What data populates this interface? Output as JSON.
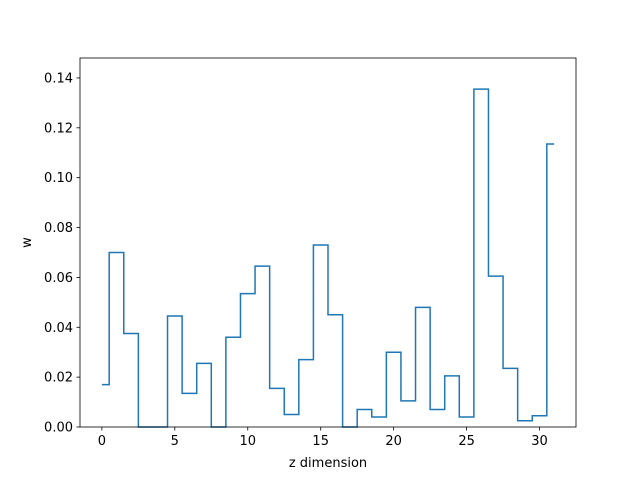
{
  "chart_data": {
    "type": "line",
    "drawstyle": "steps-mid",
    "title": "",
    "xlabel": "z dimension",
    "ylabel": "w",
    "xlim": [
      -1.5,
      32.5
    ],
    "ylim": [
      0.0,
      0.148
    ],
    "xticks": [
      0,
      5,
      10,
      15,
      20,
      25,
      30
    ],
    "yticks": [
      0.0,
      0.02,
      0.04,
      0.06,
      0.08,
      0.1,
      0.12,
      0.14
    ],
    "xtick_labels": [
      "0",
      "5",
      "10",
      "15",
      "20",
      "25",
      "30"
    ],
    "ytick_labels": [
      "0.00",
      "0.02",
      "0.04",
      "0.06",
      "0.08",
      "0.10",
      "0.12",
      "0.14"
    ],
    "grid": false,
    "legend": false,
    "series": [
      {
        "color": "#1f77b4",
        "x": [
          0,
          1,
          2,
          3,
          4,
          5,
          6,
          7,
          8,
          9,
          10,
          11,
          12,
          13,
          14,
          15,
          16,
          17,
          18,
          19,
          20,
          21,
          22,
          23,
          24,
          25,
          26,
          27,
          28,
          29,
          30,
          31
        ],
        "y": [
          0.017,
          0.07,
          0.0375,
          0.0,
          0.0,
          0.0445,
          0.0135,
          0.0255,
          0.0,
          0.036,
          0.0535,
          0.0645,
          0.0155,
          0.005,
          0.027,
          0.073,
          0.045,
          0.0,
          0.007,
          0.004,
          0.03,
          0.0105,
          0.048,
          0.007,
          0.0205,
          0.004,
          0.1355,
          0.0605,
          0.0235,
          0.0025,
          0.0045,
          0.1135
        ]
      }
    ]
  }
}
